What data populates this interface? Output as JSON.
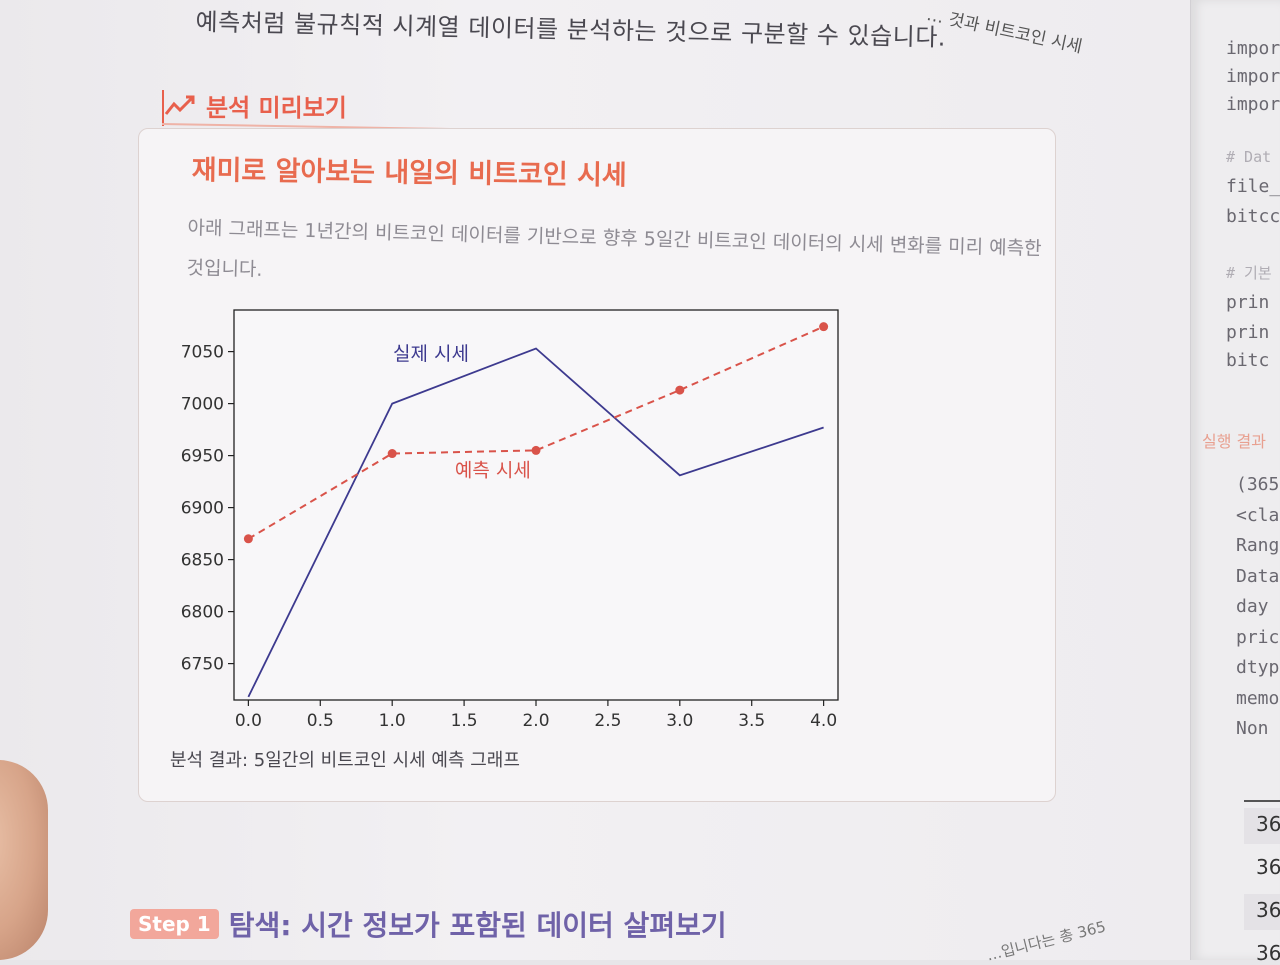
{
  "book": {
    "top_text": "예측처럼 불규칙적 시계열 데이터를 분석하는 것으로 구분할 수 있습니다.",
    "top_right_text": "… 것과 비트코인 시세",
    "preview_label": "분석 미리보기",
    "box_title": "재미로 알아보는 내일의 비트코인 시세",
    "box_desc_1": "아래 그래프는 1년간의 비트코인 데이터를 기반으로 향후 5일간 비트코인 데이터의 시세 변화를 미리 예측한",
    "box_desc_2": "것입니다.",
    "caption": "분석 결과: 5일간의 비트코인 시세 예측 그래프",
    "step_badge": "Step 1",
    "step_title": "탐색: 시간 정보가 포함된 데이터 살펴보기",
    "page_footer": "…입니다는 총 365"
  },
  "right_page": {
    "code_lines": [
      "impor",
      "impor",
      "impor",
      "# Dat",
      "file_",
      "bitcc",
      "# 기본",
      "prin",
      "prin",
      "bitc"
    ],
    "run_label": "실행 결과",
    "output_lines": [
      "(365",
      "<cla",
      "Rang",
      "Data",
      "day",
      "pric",
      "dtyp",
      "memo",
      "Non"
    ],
    "table_cells": [
      "36",
      "36",
      "36",
      "36"
    ]
  },
  "chart_data": {
    "type": "line",
    "title": "",
    "xlabel": "",
    "ylabel": "",
    "x_ticks": [
      "0.0",
      "0.5",
      "1.0",
      "1.5",
      "2.0",
      "2.5",
      "3.0",
      "3.5",
      "4.0"
    ],
    "y_ticks": [
      "6750",
      "6800",
      "6850",
      "6900",
      "6950",
      "7000",
      "7050"
    ],
    "xlim": [
      -0.1,
      4.1
    ],
    "ylim": [
      6715,
      7090
    ],
    "grid": false,
    "legend": "none",
    "series": [
      {
        "name": "실제 시세",
        "x": [
          0,
          1,
          2,
          3,
          4
        ],
        "y": [
          6718,
          7000,
          7053,
          6931,
          6977
        ],
        "color": "#3d3a8f",
        "style": "solid",
        "markers": false,
        "label_at": [
          1.27,
          7042
        ]
      },
      {
        "name": "예측 시세",
        "x": [
          0,
          1,
          2,
          3,
          4
        ],
        "y": [
          6870,
          6952,
          6955,
          7013,
          7074
        ],
        "color": "#d9534a",
        "style": "dashed",
        "markers": true,
        "label_at": [
          1.7,
          6930
        ]
      }
    ]
  }
}
